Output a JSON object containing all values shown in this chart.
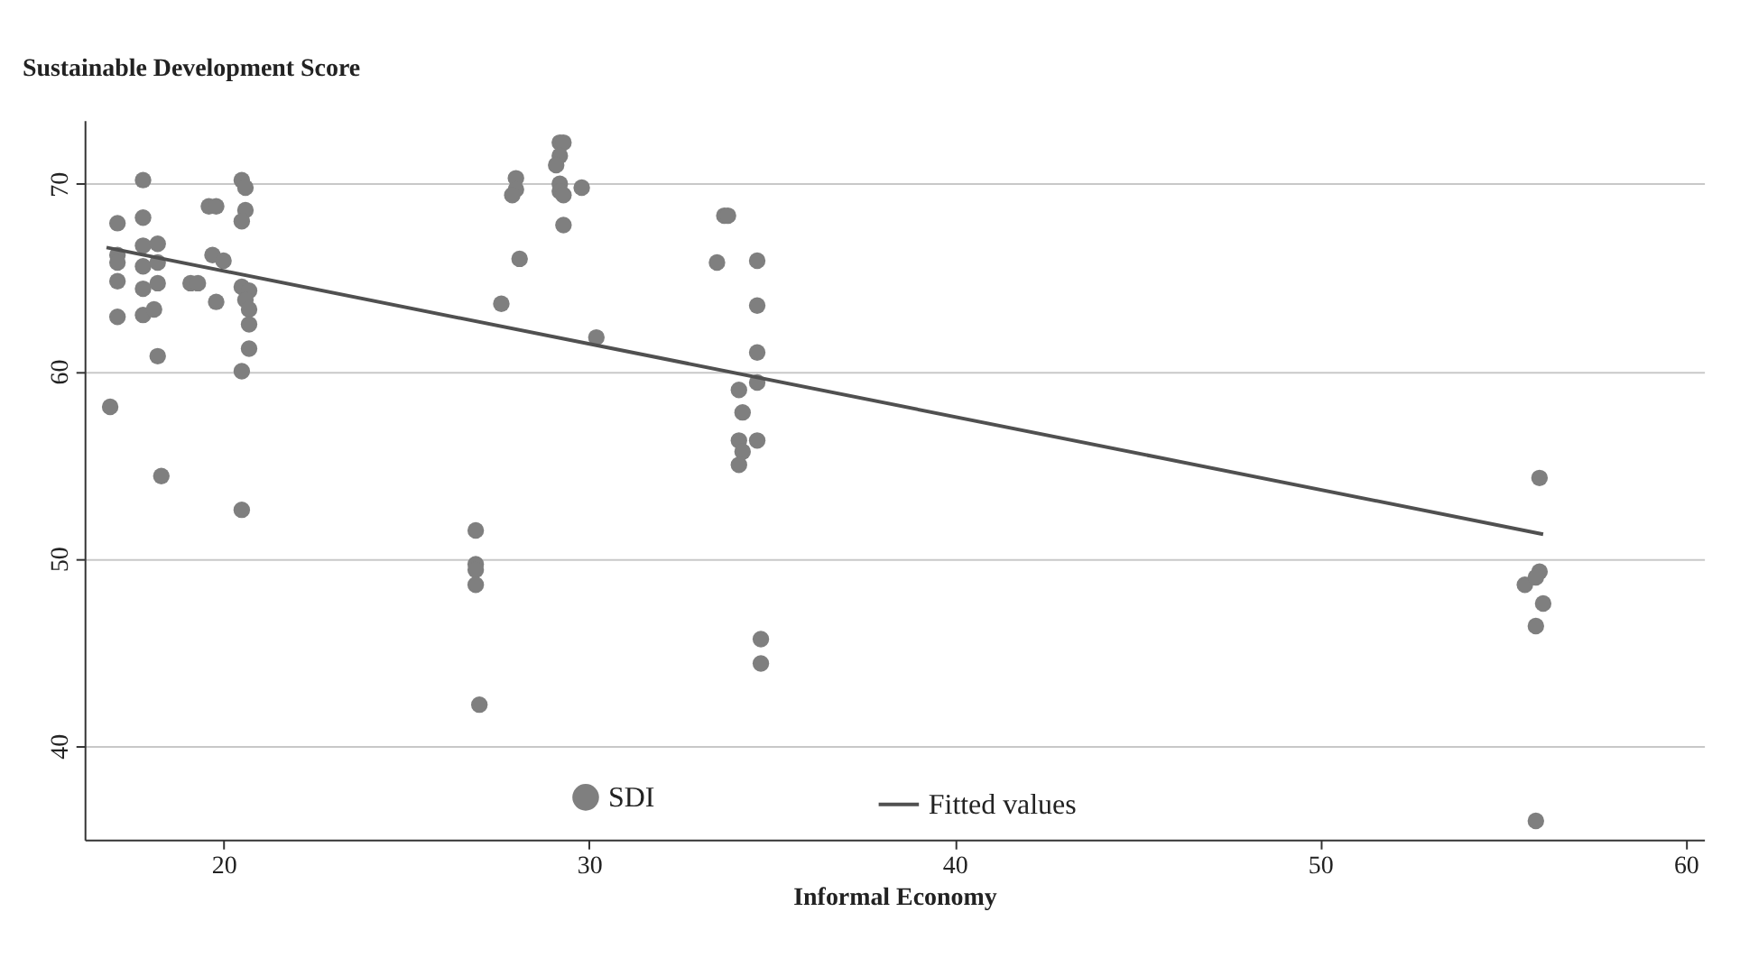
{
  "chart_data": {
    "type": "scatter",
    "xlabel": "Informal Economy",
    "ylabel": "Sustainable Development Score",
    "xlim": [
      16.2,
      60.5
    ],
    "ylim": [
      35.0,
      73.4
    ],
    "xticks": [
      20,
      30,
      40,
      50,
      60
    ],
    "yticks": [
      40,
      50,
      60,
      70
    ],
    "grid": "y",
    "legend": "bottom",
    "series": [
      {
        "name": "SDI",
        "color": "#7f7f7f",
        "marker": "circle",
        "x": [
          16.9,
          17.1,
          17.1,
          17.1,
          17.1,
          17.1,
          17.8,
          17.8,
          17.8,
          17.8,
          17.8,
          17.8,
          18.2,
          18.2,
          18.2,
          18.1,
          18.2,
          18.3,
          19.1,
          19.3,
          19.6,
          19.8,
          19.7,
          20.0,
          19.8,
          20.5,
          20.6,
          20.6,
          20.5,
          20.5,
          20.7,
          20.6,
          20.7,
          20.7,
          20.7,
          20.5,
          20.5,
          26.9,
          26.9,
          26.9,
          26.9,
          27.0,
          27.6,
          28.0,
          28.0,
          27.9,
          28.1,
          29.2,
          29.3,
          29.2,
          29.1,
          29.2,
          29.2,
          29.3,
          29.3,
          29.8,
          30.2,
          33.7,
          33.8,
          33.5,
          34.6,
          34.6,
          34.6,
          34.6,
          34.1,
          34.2,
          34.1,
          34.6,
          34.2,
          34.1,
          34.7,
          34.7,
          56.0,
          56.0,
          55.6,
          55.9,
          56.1,
          55.9,
          55.9
        ],
        "values": [
          58.1,
          67.9,
          66.2,
          65.8,
          64.8,
          62.9,
          70.2,
          68.2,
          66.7,
          65.6,
          64.4,
          63.0,
          66.8,
          65.8,
          64.7,
          63.3,
          60.8,
          54.4,
          64.7,
          64.7,
          68.8,
          68.8,
          66.2,
          65.9,
          63.7,
          70.2,
          69.8,
          68.6,
          68.0,
          64.5,
          64.3,
          63.8,
          63.3,
          62.5,
          61.2,
          60.0,
          52.6,
          51.5,
          49.7,
          49.4,
          48.6,
          42.2,
          63.6,
          70.3,
          69.7,
          69.4,
          66.0,
          72.2,
          72.2,
          71.5,
          71.0,
          70.0,
          69.6,
          67.8,
          69.4,
          69.8,
          61.8,
          68.3,
          68.3,
          65.8,
          65.9,
          63.5,
          61.0,
          59.4,
          59.0,
          57.8,
          56.3,
          56.3,
          55.7,
          55.0,
          45.7,
          44.4,
          54.3,
          49.3,
          48.6,
          49.0,
          47.6,
          46.4,
          36.0
        ]
      },
      {
        "name": "Fitted values",
        "color": "#505050",
        "type": "line",
        "line_style": "solid",
        "marker": "none",
        "x": [
          16.8,
          56.1
        ],
        "values": [
          66.6,
          51.3
        ]
      }
    ]
  }
}
